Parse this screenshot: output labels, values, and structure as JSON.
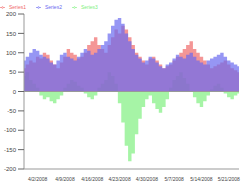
{
  "chart_data": {
    "type": "area",
    "categories": [
      null,
      null,
      null,
      null,
      "4/2/2008",
      null,
      null,
      null,
      null,
      null,
      null,
      null,
      "4/9/2008",
      null,
      null,
      null,
      null,
      null,
      null,
      null,
      "4/16/2008",
      null,
      null,
      null,
      null,
      null,
      null,
      null,
      "4/23/2008",
      null,
      null,
      null,
      null,
      null,
      null,
      null,
      "4/30/2008",
      null,
      null,
      null,
      null,
      null,
      null,
      null,
      "5/7/2008",
      null,
      null,
      null,
      null,
      null,
      null,
      null,
      "5/14/2008",
      null,
      null,
      null,
      null,
      null,
      null,
      null,
      "5/21/2008",
      null,
      null,
      null
    ],
    "series": [
      {
        "name": "Series1",
        "color": "#f06a6a",
        "values": [
          60,
          70,
          80,
          75,
          90,
          85,
          100,
          95,
          80,
          70,
          60,
          75,
          90,
          110,
          100,
          95,
          85,
          90,
          100,
          120,
          130,
          140,
          120,
          110,
          100,
          120,
          140,
          160,
          150,
          170,
          160,
          140,
          120,
          100,
          90,
          80,
          70,
          85,
          90,
          80,
          70,
          60,
          65,
          70,
          80,
          90,
          100,
          110,
          120,
          130,
          110,
          100,
          90,
          80,
          70,
          60,
          65,
          70,
          75,
          80,
          70,
          60,
          55,
          50
        ]
      },
      {
        "name": "Series2",
        "color": "#6a6af0",
        "values": [
          80,
          90,
          100,
          110,
          105,
          95,
          90,
          85,
          75,
          70,
          80,
          95,
          100,
          90,
          85,
          80,
          90,
          100,
          110,
          105,
          95,
          100,
          110,
          120,
          130,
          150,
          170,
          185,
          190,
          175,
          150,
          130,
          110,
          95,
          85,
          75,
          80,
          90,
          85,
          75,
          65,
          60,
          70,
          75,
          85,
          95,
          90,
          85,
          95,
          100,
          90,
          80,
          75,
          70,
          80,
          85,
          90,
          95,
          100,
          90,
          80,
          75,
          70,
          65
        ]
      },
      {
        "name": "Series3",
        "color": "#80f080",
        "values": [
          40,
          50,
          30,
          20,
          10,
          -10,
          -20,
          -15,
          -25,
          -30,
          -20,
          -10,
          10,
          20,
          30,
          25,
          15,
          10,
          -5,
          -15,
          -20,
          -10,
          10,
          20,
          30,
          50,
          40,
          20,
          -30,
          -80,
          -140,
          -180,
          -160,
          -110,
          -70,
          -40,
          -20,
          -10,
          -30,
          -45,
          -55,
          -40,
          -20,
          10,
          30,
          40,
          50,
          35,
          20,
          0,
          -15,
          -30,
          -40,
          -25,
          -10,
          5,
          15,
          20,
          10,
          -5,
          -15,
          -20,
          -10,
          -5
        ]
      }
    ],
    "ylim": [
      -200,
      200
    ],
    "yticks": [
      -200,
      -150,
      -100,
      -50,
      0,
      50,
      100,
      150,
      200
    ],
    "grid": false,
    "legend": "top-left"
  }
}
